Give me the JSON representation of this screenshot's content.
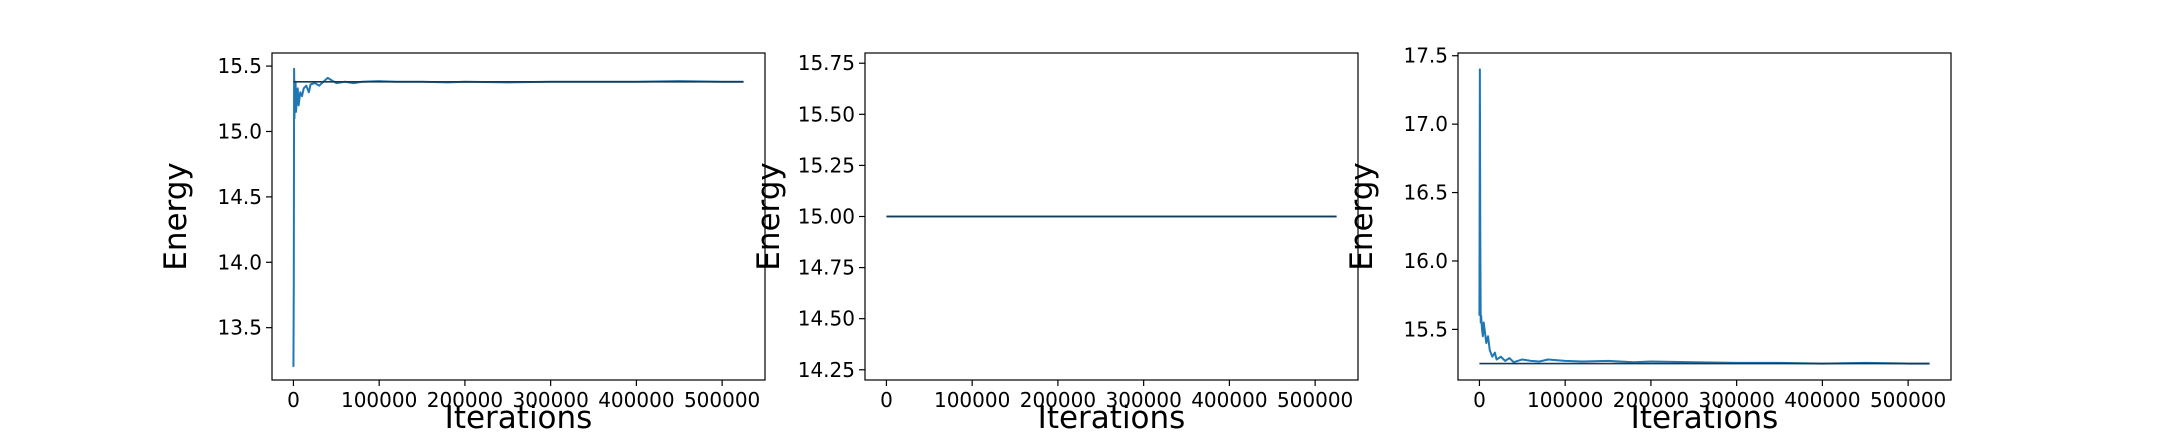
{
  "chart_data": [
    {
      "type": "line",
      "title": "",
      "xlabel": "Iterations",
      "ylabel": "Energy",
      "xlim": [
        -25000,
        550000
      ],
      "ylim": [
        13.1,
        15.6
      ],
      "xticks": [
        0,
        100000,
        200000,
        300000,
        400000,
        500000
      ],
      "xtick_labels": [
        "0",
        "100000",
        "200000",
        "300000",
        "400000",
        "500000"
      ],
      "yticks": [
        13.5,
        14.0,
        14.5,
        15.0,
        15.5
      ],
      "ytick_labels": [
        "13.5",
        "14.0",
        "14.5",
        "15.0",
        "15.5"
      ],
      "grid": false,
      "series": [
        {
          "color": "#1f77b4",
          "x": [
            0,
            400,
            800,
            1200,
            1600,
            2000,
            2500,
            3000,
            4000,
            5000,
            6000,
            8000,
            10000,
            12000,
            15000,
            18000,
            20000,
            25000,
            30000,
            35000,
            40000,
            45000,
            50000,
            60000,
            70000,
            80000,
            100000,
            120000,
            150000,
            180000,
            200000,
            250000,
            300000,
            350000,
            400000,
            450000,
            500000,
            525000
          ],
          "y": [
            13.2,
            13.85,
            15.48,
            15.1,
            15.35,
            15.3,
            15.38,
            15.15,
            15.25,
            15.33,
            15.2,
            15.3,
            15.27,
            15.33,
            15.35,
            15.3,
            15.36,
            15.37,
            15.35,
            15.38,
            15.41,
            15.39,
            15.37,
            15.38,
            15.37,
            15.38,
            15.385,
            15.38,
            15.38,
            15.375,
            15.38,
            15.375,
            15.38,
            15.38,
            15.38,
            15.385,
            15.38,
            15.38
          ]
        },
        {
          "color": "#1a3a52",
          "x": [
            0,
            525000
          ],
          "y": [
            15.38,
            15.38
          ]
        }
      ]
    },
    {
      "type": "line",
      "title": "",
      "xlabel": "Iterations",
      "ylabel": "Energy",
      "xlim": [
        -25000,
        550000
      ],
      "ylim": [
        14.2,
        15.8
      ],
      "xticks": [
        0,
        100000,
        200000,
        300000,
        400000,
        500000
      ],
      "xtick_labels": [
        "0",
        "100000",
        "200000",
        "300000",
        "400000",
        "500000"
      ],
      "yticks": [
        14.25,
        14.5,
        14.75,
        15.0,
        15.25,
        15.5,
        15.75
      ],
      "ytick_labels": [
        "14.25",
        "14.50",
        "14.75",
        "15.00",
        "15.25",
        "15.50",
        "15.75"
      ],
      "grid": false,
      "series": [
        {
          "color": "#1f77b4",
          "x": [
            0,
            525000
          ],
          "y": [
            15.0,
            15.0
          ]
        },
        {
          "color": "#1a3a52",
          "x": [
            0,
            525000
          ],
          "y": [
            15.0,
            15.0
          ]
        }
      ]
    },
    {
      "type": "line",
      "title": "",
      "xlabel": "Iterations",
      "ylabel": "Energy",
      "xlim": [
        -25000,
        550000
      ],
      "ylim": [
        15.13,
        17.52
      ],
      "xticks": [
        0,
        100000,
        200000,
        300000,
        400000,
        500000
      ],
      "xtick_labels": [
        "0",
        "100000",
        "200000",
        "300000",
        "400000",
        "500000"
      ],
      "yticks": [
        15.5,
        16.0,
        16.5,
        17.0,
        17.5
      ],
      "ytick_labels": [
        "15.5",
        "16.0",
        "16.5",
        "17.0",
        "17.5"
      ],
      "grid": false,
      "series": [
        {
          "color": "#1f77b4",
          "x": [
            0,
            500,
            1000,
            1500,
            2000,
            3000,
            4000,
            5000,
            6000,
            8000,
            10000,
            12000,
            15000,
            18000,
            20000,
            25000,
            30000,
            35000,
            40000,
            50000,
            60000,
            70000,
            80000,
            100000,
            120000,
            150000,
            180000,
            200000,
            250000,
            300000,
            350000,
            400000,
            450000,
            500000,
            525000
          ],
          "y": [
            15.6,
            17.4,
            16.2,
            15.55,
            15.6,
            15.5,
            15.45,
            15.55,
            15.5,
            15.4,
            15.45,
            15.35,
            15.3,
            15.33,
            15.28,
            15.3,
            15.27,
            15.29,
            15.26,
            15.28,
            15.27,
            15.265,
            15.28,
            15.27,
            15.265,
            15.27,
            15.26,
            15.265,
            15.26,
            15.255,
            15.255,
            15.25,
            15.255,
            15.25,
            15.25
          ]
        },
        {
          "color": "#1a3a52",
          "x": [
            0,
            525000
          ],
          "y": [
            15.25,
            15.25
          ]
        }
      ]
    }
  ]
}
